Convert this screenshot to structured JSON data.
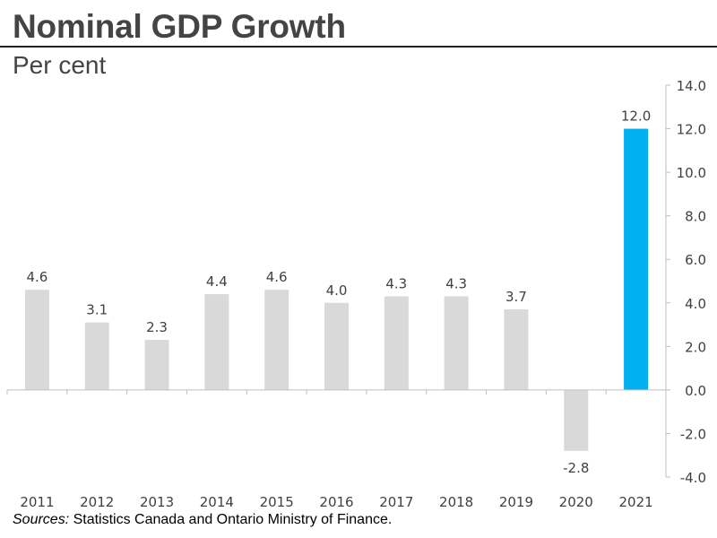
{
  "header": {
    "title": "Nominal GDP Growth",
    "subtitle": "Per cent"
  },
  "footer": {
    "source_label": "Sources:",
    "source_text": " Statistics Canada and Ontario Ministry of Finance."
  },
  "colors": {
    "bar_default": "#d9d9d9",
    "bar_highlight": "#00b0f0",
    "axis": "#bfbfbf",
    "label": "#404040"
  },
  "chart_data": {
    "type": "bar",
    "title": "Nominal GDP Growth",
    "ylabel": "Per cent",
    "xlabel": "",
    "categories": [
      "2011",
      "2012",
      "2013",
      "2014",
      "2015",
      "2016",
      "2017",
      "2018",
      "2019",
      "2020",
      "2021"
    ],
    "values": [
      4.6,
      3.1,
      2.3,
      4.4,
      4.6,
      4.0,
      4.3,
      4.3,
      3.7,
      -2.8,
      12.0
    ],
    "value_labels": [
      "4.6",
      "3.1",
      "2.3",
      "4.4",
      "4.6",
      "4.0",
      "4.3",
      "4.3",
      "3.7",
      "-2.8",
      "12.0"
    ],
    "highlight_index": 10,
    "ylim": [
      -4.0,
      14.0
    ],
    "yticks": [
      14.0,
      12.0,
      10.0,
      8.0,
      6.0,
      4.0,
      2.0,
      0.0,
      -2.0,
      -4.0
    ],
    "ytick_labels": [
      "14.0",
      "12.0",
      "10.0",
      "8.0",
      "6.0",
      "4.0",
      "2.0",
      "0.0",
      "-2.0",
      "-4.0"
    ],
    "y_axis_side": "right",
    "grid": false,
    "legend": "none"
  }
}
